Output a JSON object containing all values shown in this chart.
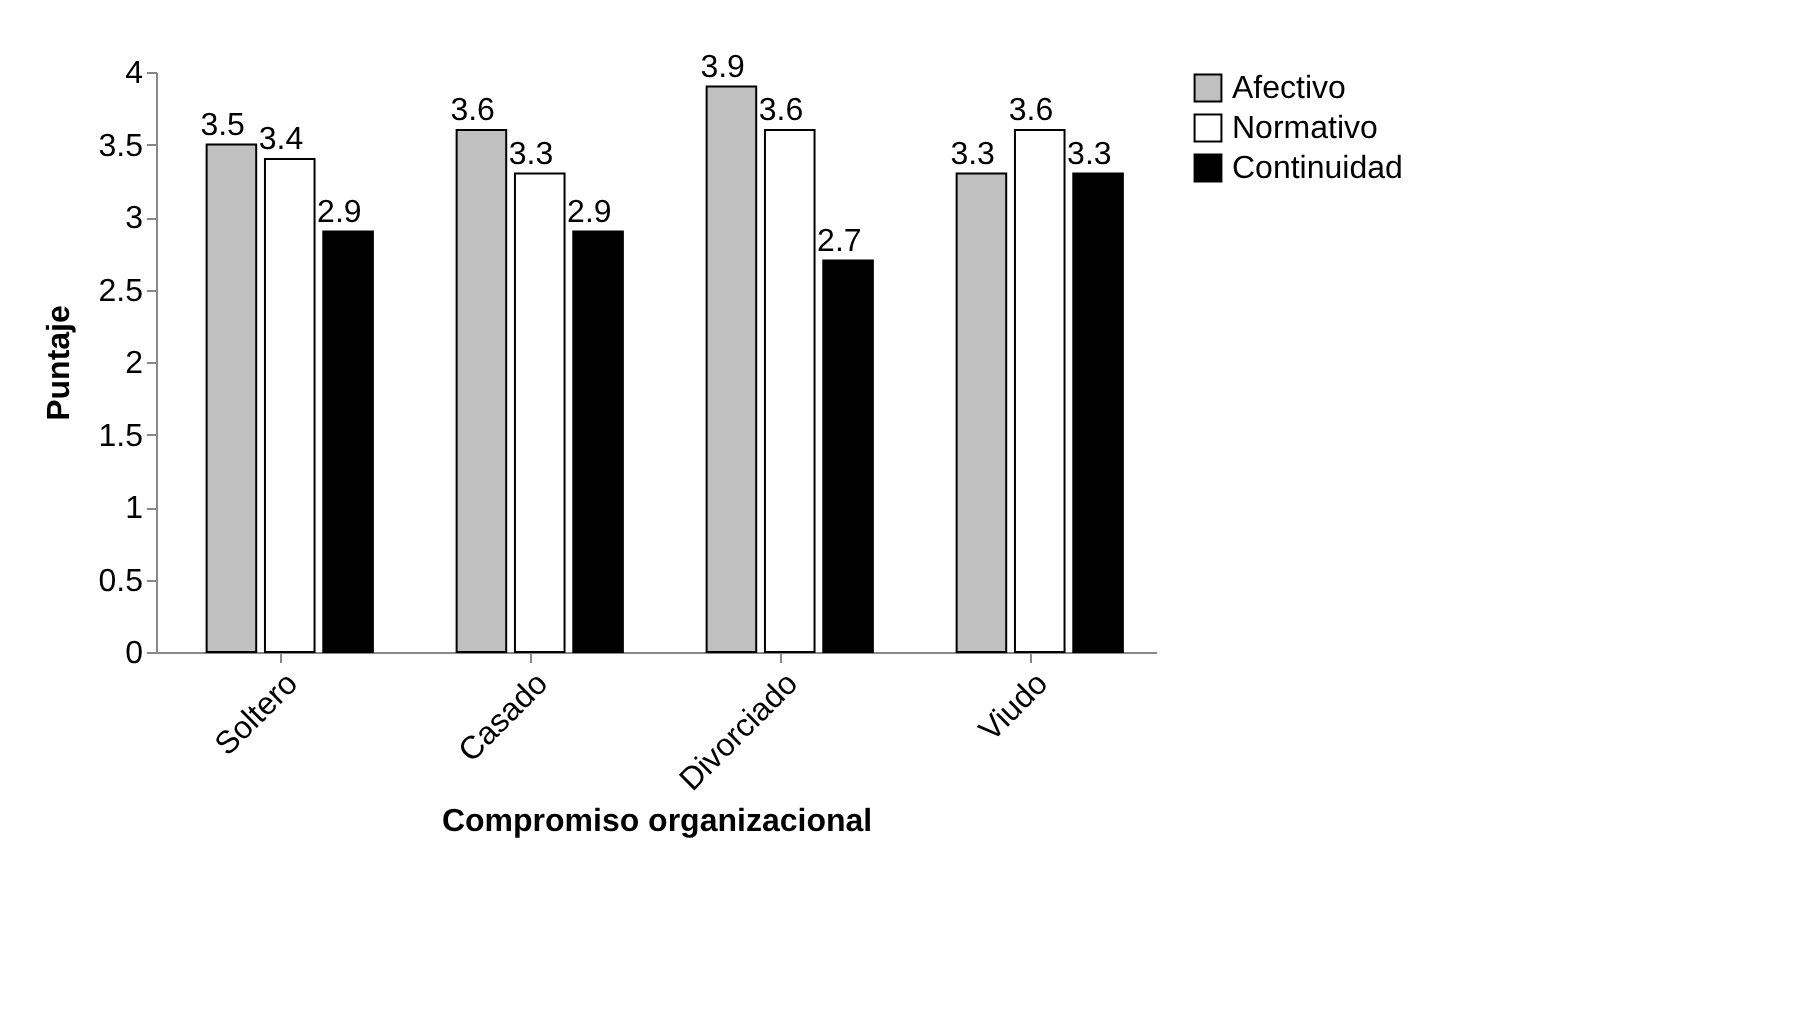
{
  "chart_data": {
    "type": "bar",
    "xlabel": "Compromiso organizacional",
    "ylabel": "Puntaje",
    "categories": [
      "Soltero",
      "Casado",
      "Divorciado",
      "Viudo"
    ],
    "series": [
      {
        "name": "Afectivo",
        "color": "#c0c0c0",
        "values": [
          3.5,
          3.6,
          3.9,
          3.3
        ]
      },
      {
        "name": "Normativo",
        "color": "#ffffff",
        "values": [
          3.4,
          3.3,
          3.6,
          3.6
        ]
      },
      {
        "name": "Continuidad",
        "color": "#000000",
        "values": [
          2.9,
          2.9,
          2.7,
          3.3
        ]
      }
    ],
    "ylim": [
      0,
      4
    ],
    "yticks": [
      0,
      0.5,
      1,
      1.5,
      2,
      2.5,
      3,
      3.5,
      4
    ],
    "grid": false,
    "legend": "right",
    "data_labels": true
  }
}
